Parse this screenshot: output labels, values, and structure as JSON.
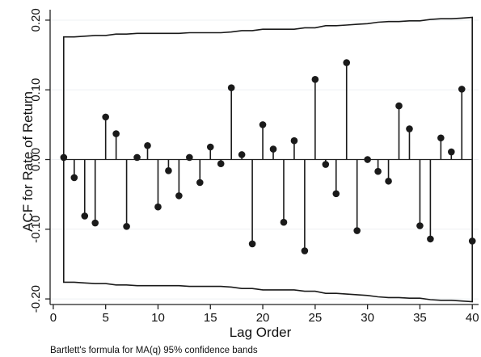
{
  "chart_data": {
    "type": "scatter",
    "title": "",
    "xlabel": "Lag Order",
    "ylabel": "ACF for Rate of Return",
    "note": "Bartlett's formula for MA(q) 95% confidence bands",
    "xlim": [
      -0.3,
      40.6
    ],
    "ylim": [
      -0.208,
      0.215
    ],
    "x_ticks": [
      0,
      5,
      10,
      15,
      20,
      25,
      30,
      35,
      40
    ],
    "x_tick_labels": [
      "0",
      "5",
      "10",
      "15",
      "20",
      "25",
      "30",
      "35",
      "40"
    ],
    "y_ticks": [
      -0.2,
      -0.1,
      0.0,
      0.1,
      0.2
    ],
    "y_tick_labels": [
      "-0.20",
      "-0.10",
      "0.00",
      "0.10",
      "0.20"
    ],
    "grid": true,
    "marker_color": "#1a1a1a",
    "band_color": "#1a1a1a",
    "grid_color": "#eef0f3",
    "lags": [
      1,
      2,
      3,
      4,
      5,
      6,
      7,
      8,
      9,
      10,
      11,
      12,
      13,
      14,
      15,
      16,
      17,
      18,
      19,
      20,
      21,
      22,
      23,
      24,
      25,
      26,
      27,
      28,
      29,
      30,
      31,
      32,
      33,
      34,
      35,
      36,
      37,
      38,
      39,
      40
    ],
    "acf": [
      0.003,
      -0.026,
      -0.081,
      -0.091,
      0.061,
      0.037,
      -0.096,
      0.003,
      0.02,
      -0.068,
      -0.016,
      -0.052,
      0.003,
      -0.033,
      0.018,
      -0.006,
      0.103,
      0.007,
      -0.121,
      0.05,
      0.015,
      -0.09,
      0.027,
      -0.131,
      0.115,
      -0.007,
      -0.049,
      0.139,
      -0.102,
      0.0,
      -0.017,
      -0.031,
      0.077,
      0.044,
      -0.095,
      -0.114,
      0.031,
      0.011,
      0.101,
      -0.117
    ],
    "confidence_band_upper": [
      0.176,
      0.176,
      0.177,
      0.178,
      0.178,
      0.18,
      0.18,
      0.181,
      0.181,
      0.181,
      0.181,
      0.181,
      0.182,
      0.182,
      0.182,
      0.182,
      0.183,
      0.185,
      0.185,
      0.187,
      0.187,
      0.187,
      0.187,
      0.189,
      0.189,
      0.192,
      0.192,
      0.193,
      0.194,
      0.195,
      0.197,
      0.198,
      0.198,
      0.199,
      0.199,
      0.201,
      0.202,
      0.202,
      0.203,
      0.204
    ],
    "confidence_band_lower": [
      -0.176,
      -0.176,
      -0.177,
      -0.178,
      -0.178,
      -0.18,
      -0.18,
      -0.181,
      -0.181,
      -0.181,
      -0.181,
      -0.181,
      -0.182,
      -0.182,
      -0.182,
      -0.182,
      -0.183,
      -0.185,
      -0.185,
      -0.187,
      -0.187,
      -0.187,
      -0.187,
      -0.189,
      -0.189,
      -0.192,
      -0.192,
      -0.193,
      -0.194,
      -0.195,
      -0.197,
      -0.198,
      -0.198,
      -0.199,
      -0.199,
      -0.201,
      -0.202,
      -0.202,
      -0.203,
      -0.204
    ]
  }
}
